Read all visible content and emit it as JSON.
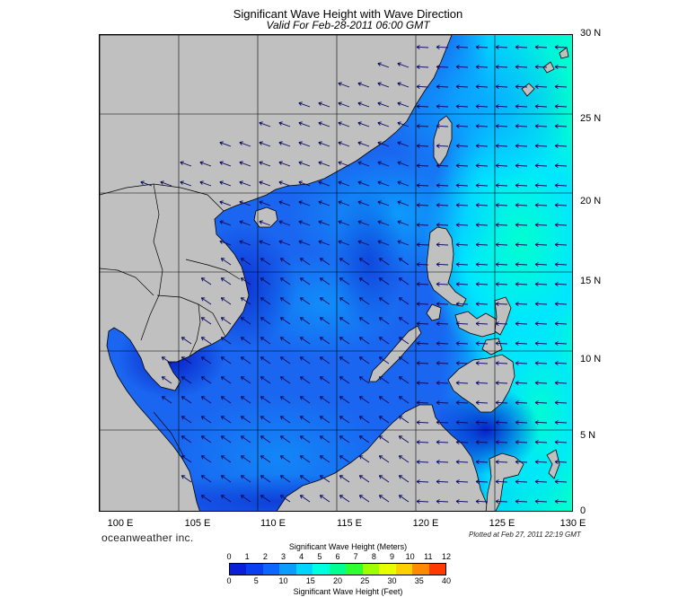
{
  "title": "Significant Wave Height with Wave Direction",
  "subtitle": "Valid For Feb-28-2011 06:00 GMT",
  "credit": "oceanweather inc.",
  "plotted": "Plotted at Feb 27, 2011 22:19 GMT",
  "lat_labels": [
    "30 N",
    "25 N",
    "20 N",
    "15 N",
    "10 N",
    "5 N",
    "0"
  ],
  "lon_labels": [
    "100 E",
    "105 E",
    "110 E",
    "115 E",
    "120 E",
    "125 E",
    "130 E"
  ],
  "colorbar": {
    "top_title": "Significant Wave Height (Meters)",
    "bottom_title": "Significant Wave Height (Feet)",
    "meters": [
      "0",
      "1",
      "2",
      "3",
      "4",
      "5",
      "6",
      "7",
      "8",
      "9",
      "10",
      "11",
      "12"
    ],
    "feet": [
      "0",
      "5",
      "10",
      "15",
      "20",
      "25",
      "30",
      "35",
      "40"
    ],
    "colors": [
      "#0a1fd8",
      "#0a3ff0",
      "#0a66ff",
      "#0a9dff",
      "#00d4ff",
      "#00ffe0",
      "#00ff90",
      "#30ff30",
      "#9dff00",
      "#e8ff00",
      "#ffd000",
      "#ff8a00",
      "#ff3a00"
    ]
  },
  "colors": {
    "land": "#c0c0c0",
    "sea_base": "#1a66f0",
    "sea_deep": "#0a24d0",
    "sea_cyan": "#00eaff",
    "sea_aqua": "#00ffc8",
    "arrow": "#0a0a60"
  }
}
